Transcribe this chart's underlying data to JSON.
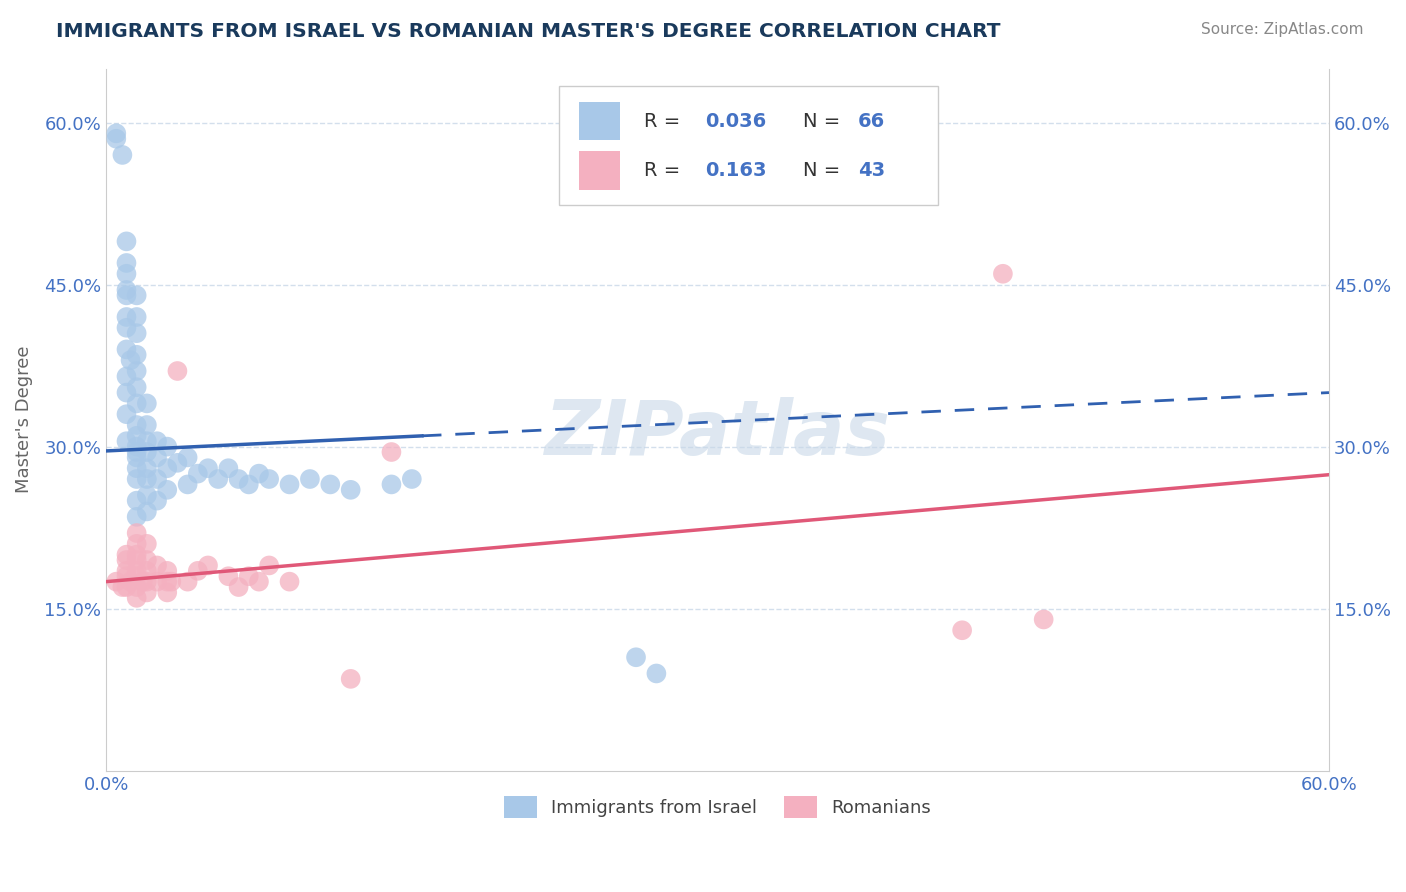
{
  "title": "IMMIGRANTS FROM ISRAEL VS ROMANIAN MASTER'S DEGREE CORRELATION CHART",
  "source_text": "Source: ZipAtlas.com",
  "ylabel": "Master's Degree",
  "xlim": [
    0.0,
    0.6
  ],
  "ylim": [
    0.0,
    0.65
  ],
  "blue_color": "#a8c8e8",
  "pink_color": "#f4b0c0",
  "blue_line_color": "#3060b0",
  "pink_line_color": "#e05878",
  "grid_color": "#c8d8e8",
  "background_color": "#ffffff",
  "watermark": "ZIPatlas",
  "title_color": "#1a3a5c",
  "axis_label_color": "#4472c4",
  "israel_x": [
    0.005,
    0.005,
    0.008,
    0.01,
    0.01,
    0.01,
    0.01,
    0.01,
    0.01,
    0.01,
    0.01,
    0.01,
    0.01,
    0.01,
    0.01,
    0.012,
    0.015,
    0.015,
    0.015,
    0.015,
    0.015,
    0.015,
    0.015,
    0.015,
    0.015,
    0.015,
    0.015,
    0.015,
    0.015,
    0.015,
    0.015,
    0.015,
    0.02,
    0.02,
    0.02,
    0.02,
    0.02,
    0.02,
    0.02,
    0.02,
    0.025,
    0.025,
    0.025,
    0.025,
    0.03,
    0.03,
    0.03,
    0.035,
    0.04,
    0.04,
    0.045,
    0.05,
    0.055,
    0.06,
    0.065,
    0.07,
    0.075,
    0.08,
    0.09,
    0.1,
    0.11,
    0.12,
    0.14,
    0.15,
    0.26,
    0.27
  ],
  "israel_y": [
    0.585,
    0.59,
    0.57,
    0.49,
    0.47,
    0.46,
    0.445,
    0.44,
    0.42,
    0.41,
    0.39,
    0.365,
    0.35,
    0.33,
    0.305,
    0.38,
    0.44,
    0.42,
    0.405,
    0.385,
    0.37,
    0.355,
    0.34,
    0.32,
    0.31,
    0.3,
    0.295,
    0.29,
    0.28,
    0.27,
    0.25,
    0.235,
    0.34,
    0.32,
    0.305,
    0.295,
    0.28,
    0.27,
    0.255,
    0.24,
    0.305,
    0.29,
    0.27,
    0.25,
    0.3,
    0.28,
    0.26,
    0.285,
    0.29,
    0.265,
    0.275,
    0.28,
    0.27,
    0.28,
    0.27,
    0.265,
    0.275,
    0.27,
    0.265,
    0.27,
    0.265,
    0.26,
    0.265,
    0.27,
    0.105,
    0.09
  ],
  "romanian_x": [
    0.005,
    0.008,
    0.01,
    0.01,
    0.01,
    0.01,
    0.01,
    0.012,
    0.015,
    0.015,
    0.015,
    0.015,
    0.015,
    0.015,
    0.015,
    0.015,
    0.018,
    0.02,
    0.02,
    0.02,
    0.02,
    0.02,
    0.025,
    0.025,
    0.03,
    0.03,
    0.03,
    0.032,
    0.035,
    0.04,
    0.045,
    0.05,
    0.06,
    0.065,
    0.07,
    0.075,
    0.08,
    0.09,
    0.12,
    0.14,
    0.42,
    0.44,
    0.46
  ],
  "romanian_y": [
    0.175,
    0.17,
    0.2,
    0.195,
    0.185,
    0.18,
    0.17,
    0.175,
    0.22,
    0.21,
    0.2,
    0.195,
    0.185,
    0.18,
    0.17,
    0.16,
    0.175,
    0.21,
    0.195,
    0.185,
    0.175,
    0.165,
    0.19,
    0.175,
    0.185,
    0.175,
    0.165,
    0.175,
    0.37,
    0.175,
    0.185,
    0.19,
    0.18,
    0.17,
    0.18,
    0.175,
    0.19,
    0.175,
    0.085,
    0.295,
    0.13,
    0.46,
    0.14
  ]
}
